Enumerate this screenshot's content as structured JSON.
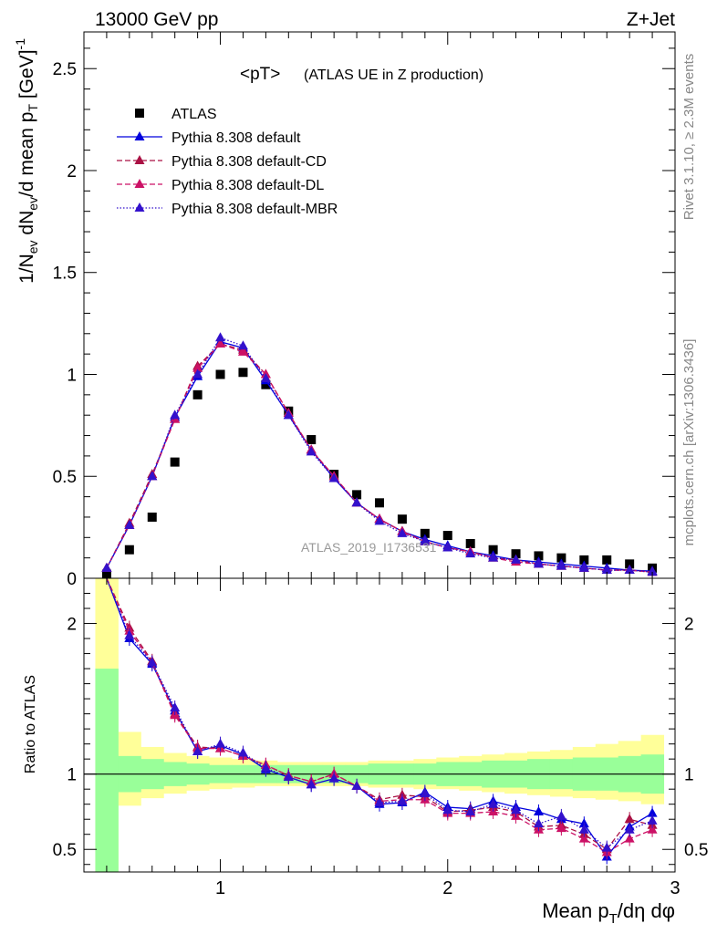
{
  "header": {
    "left": "13000 GeV pp",
    "right": "Z+Jet"
  },
  "side": {
    "top": "Rivet 3.1.10, ≥ 2.3M events",
    "bottom": "mcplots.cern.ch [arXiv:1306.3436]"
  },
  "chart_data": [
    {
      "type": "scatter",
      "title": "<pT>",
      "subtitle": "(ATLAS UE in Z production)",
      "analysis_label": "ATLAS_2019_I1736531",
      "ylabel": "1/N_ev dN_ev/d mean p_T [GeV]^-1",
      "xlim": [
        0.4,
        3.0
      ],
      "ylim": [
        0,
        2.68
      ],
      "yticks": [
        0,
        0.5,
        1,
        1.5,
        2,
        2.5
      ],
      "ytick_labels": [
        "0",
        "0.5",
        "1",
        "1.5",
        "2",
        "2.5"
      ],
      "grid": false,
      "legend_position": "top-left",
      "x": [
        0.5,
        0.6,
        0.7,
        0.8,
        0.9,
        1.0,
        1.1,
        1.2,
        1.3,
        1.4,
        1.5,
        1.6,
        1.7,
        1.8,
        1.9,
        2.0,
        2.1,
        2.2,
        2.3,
        2.4,
        2.5,
        2.6,
        2.7,
        2.8,
        2.9
      ],
      "series": [
        {
          "name": "ATLAS",
          "color": "#000000",
          "marker": "square",
          "line": "none",
          "values": [
            0.02,
            0.14,
            0.3,
            0.57,
            0.9,
            1.0,
            1.01,
            0.95,
            0.82,
            0.68,
            0.51,
            0.41,
            0.37,
            0.29,
            0.22,
            0.21,
            0.17,
            0.14,
            0.12,
            0.11,
            0.1,
            0.09,
            0.09,
            0.07,
            0.05
          ]
        },
        {
          "name": "Pythia 8.308 default",
          "color": "#0000dd",
          "marker": "triangle",
          "line": "solid",
          "values": [
            0.05,
            0.26,
            0.5,
            0.79,
            0.99,
            1.16,
            1.13,
            0.97,
            0.8,
            0.63,
            0.49,
            0.37,
            0.29,
            0.23,
            0.19,
            0.16,
            0.13,
            0.11,
            0.09,
            0.08,
            0.07,
            0.06,
            0.05,
            0.04,
            0.035
          ]
        },
        {
          "name": "Pythia 8.308 default-CD",
          "color": "#aa1144",
          "marker": "triangle",
          "line": "dashed",
          "values": [
            0.05,
            0.27,
            0.51,
            0.78,
            1.04,
            1.15,
            1.12,
            1.0,
            0.81,
            0.63,
            0.5,
            0.37,
            0.29,
            0.23,
            0.18,
            0.15,
            0.13,
            0.1,
            0.09,
            0.07,
            0.06,
            0.05,
            0.04,
            0.04,
            0.03
          ]
        },
        {
          "name": "Pythia 8.308 default-DL",
          "color": "#cc1166",
          "marker": "triangle",
          "line": "dashed",
          "values": [
            0.05,
            0.26,
            0.5,
            0.78,
            1.03,
            1.15,
            1.11,
            1.0,
            0.81,
            0.63,
            0.5,
            0.37,
            0.29,
            0.23,
            0.18,
            0.15,
            0.13,
            0.1,
            0.08,
            0.07,
            0.06,
            0.05,
            0.04,
            0.04,
            0.03
          ]
        },
        {
          "name": "Pythia 8.308 default-MBR",
          "color": "#3311cc",
          "marker": "triangle",
          "line": "dotted",
          "values": [
            0.05,
            0.26,
            0.5,
            0.8,
            1.0,
            1.18,
            1.14,
            0.98,
            0.8,
            0.62,
            0.49,
            0.37,
            0.28,
            0.22,
            0.18,
            0.15,
            0.12,
            0.1,
            0.09,
            0.07,
            0.06,
            0.05,
            0.04,
            0.04,
            0.03
          ]
        }
      ]
    },
    {
      "type": "line",
      "ylabel": "Ratio to ATLAS",
      "xlabel": "Mean p_T/dη dφ",
      "xlim": [
        0.4,
        3.0
      ],
      "ylim": [
        0.35,
        2.3
      ],
      "xticks": [
        1,
        2,
        3
      ],
      "xtick_labels": [
        "1",
        "2",
        "3"
      ],
      "yticks": [
        0.5,
        1,
        2
      ],
      "ytick_labels": [
        "0.5",
        "1",
        "2"
      ],
      "reference_line": 1,
      "x": [
        0.5,
        0.6,
        0.7,
        0.8,
        0.9,
        1.0,
        1.1,
        1.2,
        1.3,
        1.4,
        1.5,
        1.6,
        1.7,
        1.8,
        1.9,
        2.0,
        2.1,
        2.2,
        2.3,
        2.4,
        2.5,
        2.6,
        2.7,
        2.8,
        2.9
      ],
      "band_edges": [
        0.45,
        0.55,
        0.65,
        0.75,
        0.85,
        0.95,
        1.05,
        1.15,
        1.25,
        1.35,
        1.45,
        1.55,
        1.65,
        1.75,
        1.85,
        1.95,
        2.05,
        2.15,
        2.25,
        2.35,
        2.45,
        2.55,
        2.65,
        2.75,
        2.85,
        2.95
      ],
      "stat_band": {
        "color": "#99ff99",
        "lo": [
          0.35,
          0.88,
          0.9,
          0.92,
          0.93,
          0.94,
          0.94,
          0.94,
          0.94,
          0.94,
          0.94,
          0.94,
          0.93,
          0.93,
          0.93,
          0.92,
          0.92,
          0.91,
          0.91,
          0.9,
          0.9,
          0.89,
          0.89,
          0.88,
          0.87
        ],
        "hi": [
          1.7,
          1.12,
          1.1,
          1.08,
          1.07,
          1.06,
          1.06,
          1.06,
          1.06,
          1.06,
          1.06,
          1.06,
          1.07,
          1.07,
          1.07,
          1.08,
          1.08,
          1.09,
          1.09,
          1.1,
          1.1,
          1.11,
          1.11,
          1.12,
          1.13
        ]
      },
      "syst_band": {
        "color": "#ffff99",
        "lo": [
          0.35,
          0.79,
          0.84,
          0.87,
          0.89,
          0.9,
          0.91,
          0.92,
          0.92,
          0.92,
          0.92,
          0.92,
          0.91,
          0.91,
          0.9,
          0.9,
          0.89,
          0.88,
          0.87,
          0.86,
          0.85,
          0.84,
          0.83,
          0.82,
          0.8
        ],
        "hi": [
          2.3,
          1.28,
          1.18,
          1.14,
          1.12,
          1.11,
          1.1,
          1.09,
          1.08,
          1.08,
          1.08,
          1.08,
          1.09,
          1.09,
          1.1,
          1.11,
          1.12,
          1.13,
          1.14,
          1.15,
          1.16,
          1.18,
          1.2,
          1.22,
          1.26
        ]
      },
      "series": [
        {
          "name": "Pythia 8.308 default",
          "color": "#0000dd",
          "line": "solid",
          "values": [
            2.8,
            1.9,
            1.73,
            1.42,
            1.15,
            1.19,
            1.13,
            1.03,
            0.98,
            0.93,
            0.97,
            0.92,
            0.8,
            0.81,
            0.88,
            0.78,
            0.77,
            0.82,
            0.78,
            0.75,
            0.7,
            0.67,
            0.45,
            0.65,
            0.74
          ]
        },
        {
          "name": "Pythia 8.308 default-CD",
          "color": "#aa1144",
          "line": "dashed",
          "values": [
            2.9,
            1.97,
            1.75,
            1.4,
            1.18,
            1.17,
            1.12,
            1.06,
            0.99,
            0.95,
            1.0,
            0.92,
            0.83,
            0.86,
            0.85,
            0.75,
            0.76,
            0.78,
            0.75,
            0.65,
            0.66,
            0.6,
            0.5,
            0.7,
            0.66
          ]
        },
        {
          "name": "Pythia 8.308 default-DL",
          "color": "#cc1166",
          "line": "dashed",
          "values": [
            2.9,
            1.95,
            1.74,
            1.39,
            1.17,
            1.17,
            1.12,
            1.06,
            0.99,
            0.95,
            1.0,
            0.92,
            0.82,
            0.83,
            0.83,
            0.74,
            0.74,
            0.75,
            0.72,
            0.63,
            0.64,
            0.57,
            0.48,
            0.57,
            0.63
          ]
        },
        {
          "name": "Pythia 8.308 default-MBR",
          "color": "#3311cc",
          "line": "dotted",
          "values": [
            2.8,
            1.92,
            1.74,
            1.44,
            1.15,
            1.2,
            1.14,
            1.04,
            0.98,
            0.93,
            0.97,
            0.92,
            0.81,
            0.82,
            0.87,
            0.76,
            0.75,
            0.8,
            0.76,
            0.67,
            0.72,
            0.63,
            0.51,
            0.63,
            0.69
          ]
        }
      ]
    }
  ]
}
